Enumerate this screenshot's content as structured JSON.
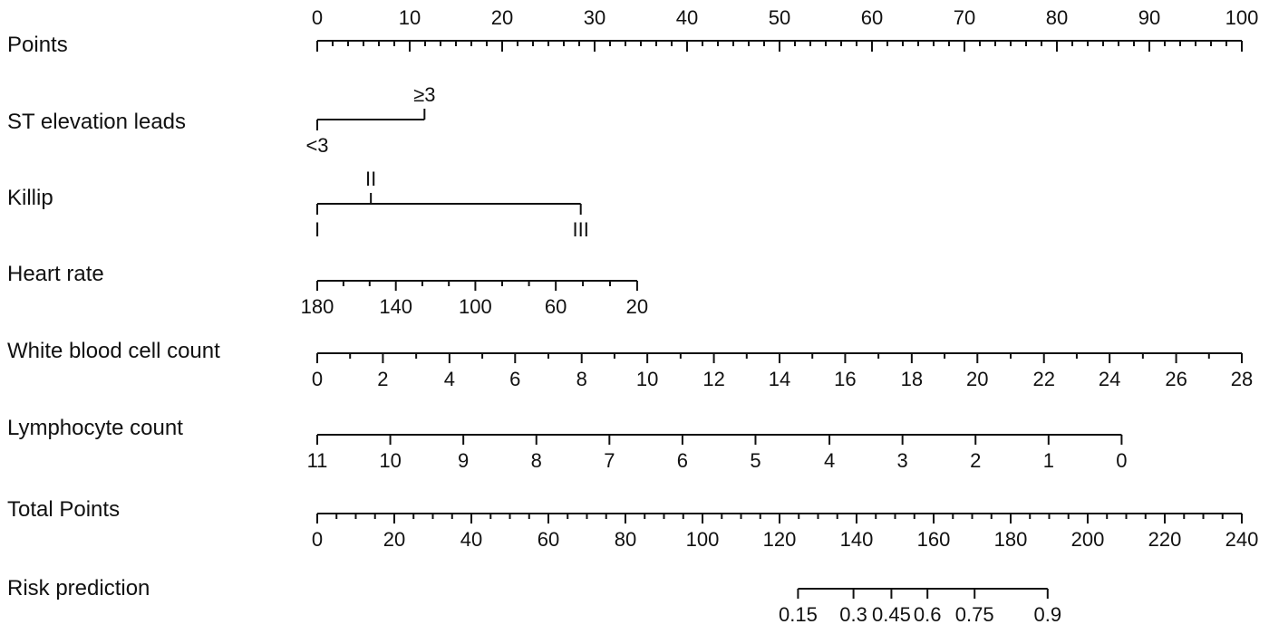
{
  "chart_data": {
    "type": "nomogram",
    "rows": [
      {
        "name": "Points",
        "labels_above": true,
        "minor_between_major": 5,
        "ticks": [
          {
            "value": 0,
            "label": "0",
            "points": 0
          },
          {
            "value": 10,
            "label": "10",
            "points": 10
          },
          {
            "value": 20,
            "label": "20",
            "points": 20
          },
          {
            "value": 30,
            "label": "30",
            "points": 30
          },
          {
            "value": 40,
            "label": "40",
            "points": 40
          },
          {
            "value": 50,
            "label": "50",
            "points": 50
          },
          {
            "value": 60,
            "label": "60",
            "points": 60
          },
          {
            "value": 70,
            "label": "70",
            "points": 70
          },
          {
            "value": 80,
            "label": "80",
            "points": 80
          },
          {
            "value": 90,
            "label": "90",
            "points": 90
          },
          {
            "value": 100,
            "label": "100",
            "points": 100
          }
        ]
      },
      {
        "name": "ST elevation leads",
        "ticks": [
          {
            "label": "<3",
            "points": 0,
            "side": "below"
          },
          {
            "label": "≥3",
            "points": 11.6,
            "side": "above"
          }
        ]
      },
      {
        "name": "Killip",
        "ticks": [
          {
            "label": "I",
            "points": 0,
            "side": "below"
          },
          {
            "label": "II",
            "points": 5.8,
            "side": "above"
          },
          {
            "label": "III",
            "points": 28.5,
            "side": "below"
          }
        ]
      },
      {
        "name": "Heart rate",
        "minor_between_major": 2,
        "ticks": [
          {
            "value": 180,
            "label": "180",
            "points": 0
          },
          {
            "value": 140,
            "label": "140",
            "points": 8.5
          },
          {
            "value": 100,
            "label": "100",
            "points": 17.1
          },
          {
            "value": 60,
            "label": "60",
            "points": 25.8
          },
          {
            "value": 20,
            "label": "20",
            "points": 34.6
          }
        ]
      },
      {
        "name": "White blood cell count",
        "minor_between_major": 1,
        "ticks": [
          {
            "value": 0,
            "label": "0",
            "points": 0
          },
          {
            "value": 2,
            "label": "2",
            "points": 7.1
          },
          {
            "value": 4,
            "label": "4",
            "points": 14.3
          },
          {
            "value": 6,
            "label": "6",
            "points": 21.4
          },
          {
            "value": 8,
            "label": "8",
            "points": 28.6
          },
          {
            "value": 10,
            "label": "10",
            "points": 35.7
          },
          {
            "value": 12,
            "label": "12",
            "points": 42.9
          },
          {
            "value": 14,
            "label": "14",
            "points": 50
          },
          {
            "value": 16,
            "label": "16",
            "points": 57.1
          },
          {
            "value": 18,
            "label": "18",
            "points": 64.3
          },
          {
            "value": 20,
            "label": "20",
            "points": 71.4
          },
          {
            "value": 22,
            "label": "22",
            "points": 78.6
          },
          {
            "value": 24,
            "label": "24",
            "points": 85.7
          },
          {
            "value": 26,
            "label": "26",
            "points": 92.9
          },
          {
            "value": 28,
            "label": "28",
            "points": 100
          }
        ]
      },
      {
        "name": "Lymphocyte count",
        "ticks": [
          {
            "value": 11,
            "label": "11",
            "points": 0
          },
          {
            "value": 10,
            "label": "10",
            "points": 7.9
          },
          {
            "value": 9,
            "label": "9",
            "points": 15.8
          },
          {
            "value": 8,
            "label": "8",
            "points": 23.7
          },
          {
            "value": 7,
            "label": "7",
            "points": 31.6
          },
          {
            "value": 6,
            "label": "6",
            "points": 39.5
          },
          {
            "value": 5,
            "label": "5",
            "points": 47.4
          },
          {
            "value": 4,
            "label": "4",
            "points": 55.4
          },
          {
            "value": 3,
            "label": "3",
            "points": 63.3
          },
          {
            "value": 2,
            "label": "2",
            "points": 71.2
          },
          {
            "value": 1,
            "label": "1",
            "points": 79.1
          },
          {
            "value": 0,
            "label": "0",
            "points": 87
          }
        ]
      },
      {
        "name": "Total Points",
        "minor_between_major": 3,
        "ticks": [
          {
            "value": 0,
            "label": "0",
            "points": 0
          },
          {
            "value": 20,
            "label": "20",
            "points": 8.33
          },
          {
            "value": 40,
            "label": "40",
            "points": 16.67
          },
          {
            "value": 60,
            "label": "60",
            "points": 25
          },
          {
            "value": 80,
            "label": "80",
            "points": 33.33
          },
          {
            "value": 100,
            "label": "100",
            "points": 41.67
          },
          {
            "value": 120,
            "label": "120",
            "points": 50
          },
          {
            "value": 140,
            "label": "140",
            "points": 58.33
          },
          {
            "value": 160,
            "label": "160",
            "points": 66.67
          },
          {
            "value": 180,
            "label": "180",
            "points": 75
          },
          {
            "value": 200,
            "label": "200",
            "points": 83.33
          },
          {
            "value": 220,
            "label": "220",
            "points": 91.67
          },
          {
            "value": 240,
            "label": "240",
            "points": 100
          }
        ]
      },
      {
        "name": "Risk prediction",
        "ticks": [
          {
            "value": 0.15,
            "label": "0.15",
            "points": 52
          },
          {
            "value": 0.3,
            "label": "0.3",
            "points": 58
          },
          {
            "value": 0.45,
            "label": "0.45",
            "points": 62.1
          },
          {
            "value": 0.6,
            "label": "0.6",
            "points": 66
          },
          {
            "value": 0.75,
            "label": "0.75",
            "points": 71.1
          },
          {
            "value": 0.9,
            "label": "0.9",
            "points": 79
          }
        ]
      }
    ]
  }
}
